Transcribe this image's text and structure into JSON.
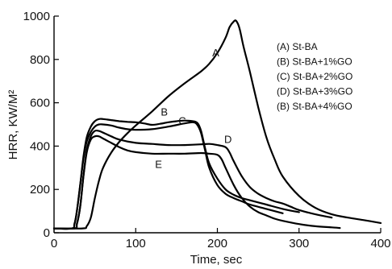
{
  "chart_data": {
    "type": "line",
    "xlabel": "Time, sec",
    "ylabel": "HRR, KW/M²",
    "xlim": [
      0,
      400
    ],
    "ylim": [
      0,
      1000
    ],
    "xticks": [
      0,
      100,
      200,
      300,
      400
    ],
    "yticks": [
      0,
      200,
      400,
      600,
      800,
      1000
    ],
    "grid": false,
    "legend_position": "top-right",
    "legend": [
      "(A)  St-BA",
      "(B)  St-BA+1%GO",
      "(C)  St-BA+2%GO",
      "(D)  St-BA+3%GO",
      "(B)  St-BA+4%GO"
    ],
    "series": [
      {
        "name": "A",
        "x": [
          0,
          35,
          40,
          45,
          50,
          55,
          60,
          70,
          80,
          90,
          100,
          120,
          140,
          160,
          180,
          190,
          200,
          210,
          215,
          220,
          223,
          227,
          232,
          240,
          250,
          260,
          270,
          280,
          300,
          320,
          340,
          360,
          380,
          400
        ],
        "y": [
          20,
          20,
          30,
          70,
          160,
          240,
          300,
          370,
          420,
          460,
          495,
          560,
          630,
          690,
          745,
          780,
          830,
          900,
          950,
          975,
          978,
          945,
          860,
          740,
          580,
          440,
          340,
          260,
          170,
          115,
          85,
          70,
          58,
          45
        ]
      },
      {
        "name": "B",
        "x": [
          0,
          22,
          25,
          28,
          32,
          36,
          40,
          45,
          50,
          55,
          60,
          70,
          80,
          90,
          100,
          110,
          120,
          130,
          140,
          150,
          160,
          170,
          176,
          180,
          185,
          190,
          200,
          210,
          220,
          230,
          240,
          260,
          280,
          300
        ],
        "y": [
          20,
          20,
          40,
          100,
          220,
          350,
          440,
          490,
          515,
          525,
          525,
          520,
          515,
          512,
          510,
          505,
          498,
          503,
          510,
          515,
          518,
          515,
          505,
          470,
          390,
          320,
          250,
          200,
          175,
          160,
          150,
          130,
          110,
          95
        ]
      },
      {
        "name": "C",
        "x": [
          0,
          22,
          25,
          28,
          32,
          36,
          40,
          45,
          50,
          55,
          60,
          70,
          80,
          90,
          100,
          120,
          140,
          160,
          170,
          175,
          180,
          185,
          190,
          200,
          210,
          220,
          230,
          240,
          260,
          280
        ],
        "y": [
          20,
          20,
          40,
          100,
          220,
          340,
          420,
          465,
          490,
          500,
          500,
          495,
          485,
          478,
          475,
          478,
          490,
          505,
          510,
          500,
          460,
          380,
          300,
          220,
          180,
          160,
          145,
          130,
          110,
          90
        ]
      },
      {
        "name": "D",
        "x": [
          0,
          25,
          28,
          32,
          36,
          40,
          45,
          50,
          55,
          60,
          70,
          80,
          100,
          120,
          140,
          160,
          180,
          190,
          200,
          210,
          215,
          220,
          230,
          240,
          250,
          260,
          270,
          280,
          290,
          300,
          320,
          340
        ],
        "y": [
          20,
          20,
          40,
          120,
          260,
          380,
          445,
          470,
          470,
          462,
          445,
          430,
          415,
          410,
          405,
          405,
          408,
          410,
          405,
          395,
          370,
          330,
          260,
          210,
          180,
          160,
          145,
          135,
          120,
          105,
          85,
          70
        ]
      },
      {
        "name": "E",
        "x": [
          0,
          25,
          28,
          32,
          36,
          40,
          45,
          50,
          55,
          60,
          70,
          80,
          90,
          100,
          120,
          140,
          160,
          180,
          190,
          200,
          205,
          210,
          220,
          230,
          240,
          250,
          260,
          270,
          280,
          300,
          320,
          340,
          350
        ],
        "y": [
          20,
          20,
          40,
          120,
          260,
          370,
          430,
          445,
          445,
          435,
          415,
          395,
          380,
          372,
          365,
          365,
          365,
          368,
          365,
          360,
          340,
          300,
          220,
          160,
          120,
          95,
          80,
          65,
          55,
          40,
          30,
          25,
          22
        ]
      }
    ],
    "curve_labels": [
      {
        "text": "A",
        "x": 198,
        "y": 815
      },
      {
        "text": "B",
        "x": 135,
        "y": 540
      },
      {
        "text": "C",
        "x": 157,
        "y": 500
      },
      {
        "text": "D",
        "x": 213,
        "y": 415
      },
      {
        "text": "E",
        "x": 128,
        "y": 300
      }
    ]
  }
}
